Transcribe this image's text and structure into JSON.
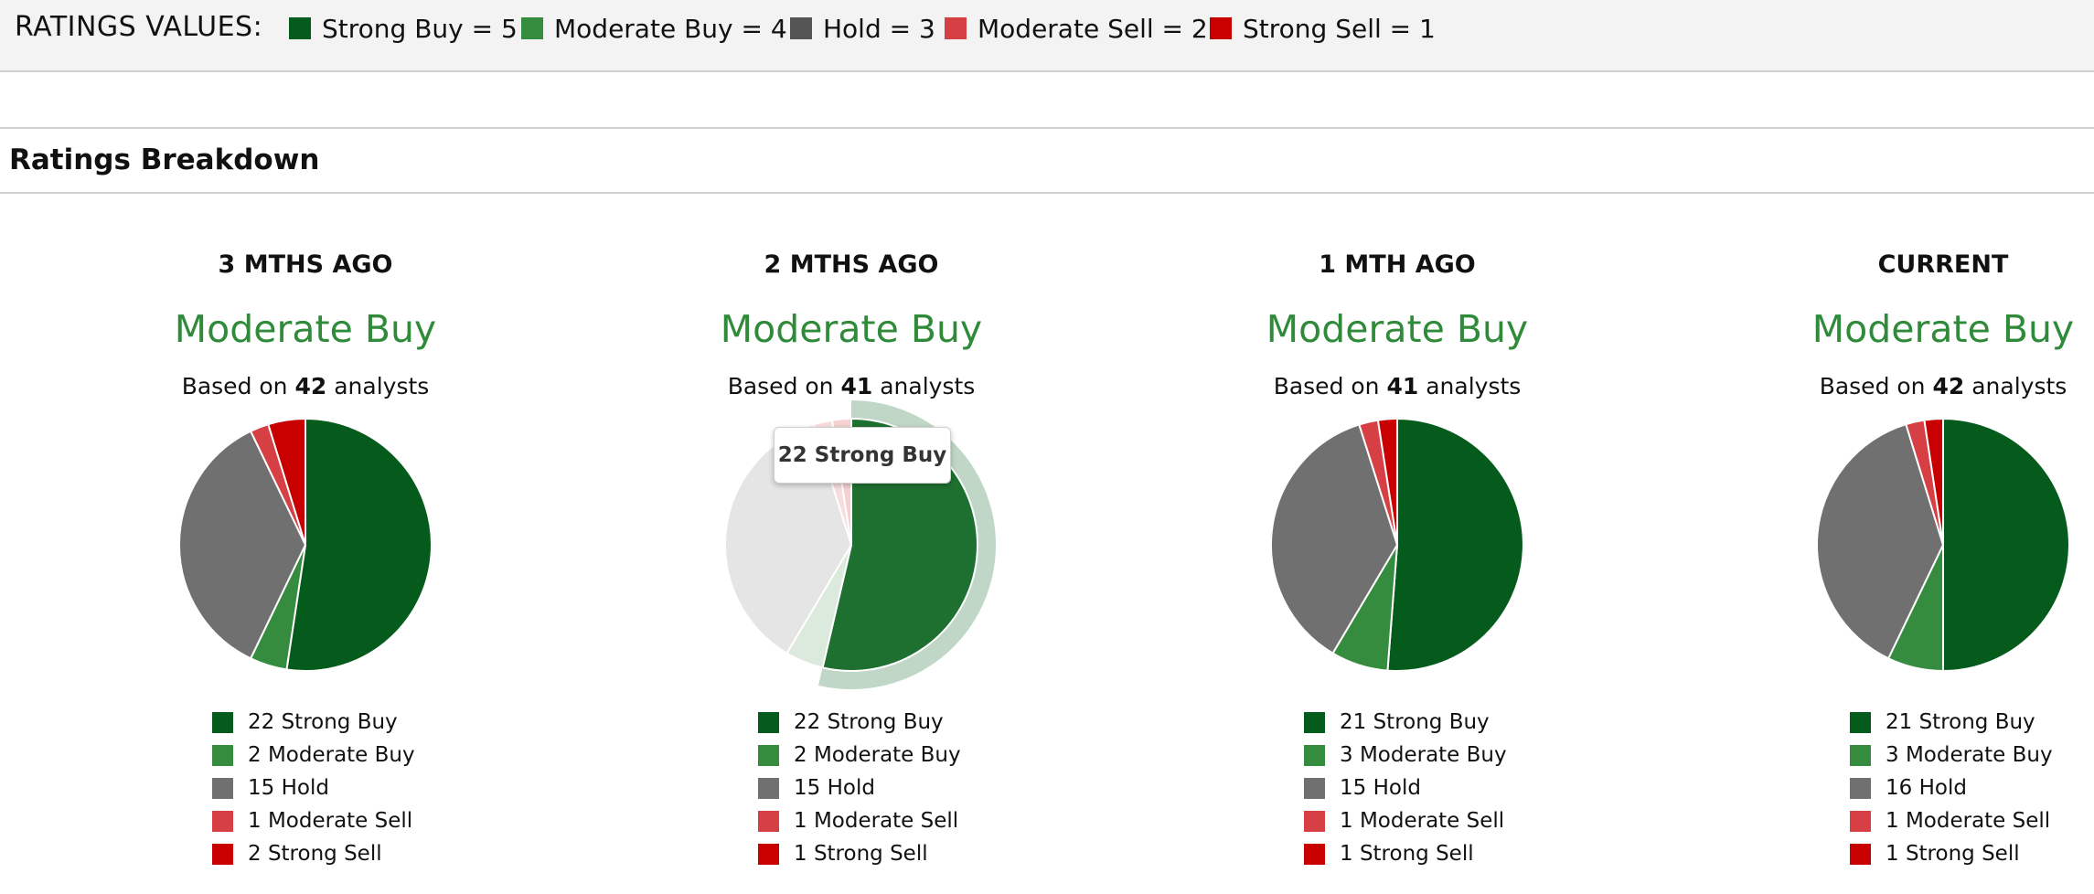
{
  "ratings_values": {
    "title": "RATINGS VALUES:",
    "items": [
      {
        "label": "Strong Buy = 5",
        "color": "#055b1b"
      },
      {
        "label": "Moderate Buy = 4",
        "color": "#358c3e"
      },
      {
        "label": "Hold = 3",
        "color": "#555555"
      },
      {
        "label": "Moderate Sell = 2",
        "color": "#d64045"
      },
      {
        "label": "Strong Sell = 1",
        "color": "#c80000"
      }
    ]
  },
  "section": {
    "title": "Ratings Breakdown"
  },
  "colors": {
    "strong_buy": "#055b1b",
    "moderate_buy": "#358c3e",
    "hold": "#707070",
    "moderate_sell": "#d64045",
    "strong_sell": "#c80000",
    "rating_text": "#2f8a3a"
  },
  "tooltip": {
    "text": "22 Strong Buy",
    "period_index": 1,
    "slice_index": 0
  },
  "chart_data": [
    {
      "type": "pie",
      "title": "3 MTHS AGO",
      "rating": "Moderate Buy",
      "based_on_prefix": "Based on",
      "analysts": "42",
      "based_on_suffix": "analysts",
      "slices": [
        {
          "name": "Strong Buy",
          "value": 22,
          "label": "22 Strong Buy"
        },
        {
          "name": "Moderate Buy",
          "value": 2,
          "label": "2 Moderate Buy"
        },
        {
          "name": "Hold",
          "value": 15,
          "label": "15 Hold"
        },
        {
          "name": "Moderate Sell",
          "value": 1,
          "label": "1 Moderate Sell"
        },
        {
          "name": "Strong Sell",
          "value": 2,
          "label": "2 Strong Sell"
        }
      ]
    },
    {
      "type": "pie",
      "title": "2 MTHS AGO",
      "rating": "Moderate Buy",
      "based_on_prefix": "Based on",
      "analysts": "41",
      "based_on_suffix": "analysts",
      "slices": [
        {
          "name": "Strong Buy",
          "value": 22,
          "label": "22 Strong Buy"
        },
        {
          "name": "Moderate Buy",
          "value": 2,
          "label": "2 Moderate Buy"
        },
        {
          "name": "Hold",
          "value": 15,
          "label": "15 Hold"
        },
        {
          "name": "Moderate Sell",
          "value": 1,
          "label": "1 Moderate Sell"
        },
        {
          "name": "Strong Sell",
          "value": 1,
          "label": "1 Strong Sell"
        }
      ]
    },
    {
      "type": "pie",
      "title": "1 MTH AGO",
      "rating": "Moderate Buy",
      "based_on_prefix": "Based on",
      "analysts": "41",
      "based_on_suffix": "analysts",
      "slices": [
        {
          "name": "Strong Buy",
          "value": 21,
          "label": "21 Strong Buy"
        },
        {
          "name": "Moderate Buy",
          "value": 3,
          "label": "3 Moderate Buy"
        },
        {
          "name": "Hold",
          "value": 15,
          "label": "15 Hold"
        },
        {
          "name": "Moderate Sell",
          "value": 1,
          "label": "1 Moderate Sell"
        },
        {
          "name": "Strong Sell",
          "value": 1,
          "label": "1 Strong Sell"
        }
      ]
    },
    {
      "type": "pie",
      "title": "CURRENT",
      "rating": "Moderate Buy",
      "based_on_prefix": "Based on",
      "analysts": "42",
      "based_on_suffix": "analysts",
      "slices": [
        {
          "name": "Strong Buy",
          "value": 21,
          "label": "21 Strong Buy"
        },
        {
          "name": "Moderate Buy",
          "value": 3,
          "label": "3 Moderate Buy"
        },
        {
          "name": "Hold",
          "value": 16,
          "label": "16 Hold"
        },
        {
          "name": "Moderate Sell",
          "value": 1,
          "label": "1 Moderate Sell"
        },
        {
          "name": "Strong Sell",
          "value": 1,
          "label": "1 Strong Sell"
        }
      ]
    }
  ]
}
